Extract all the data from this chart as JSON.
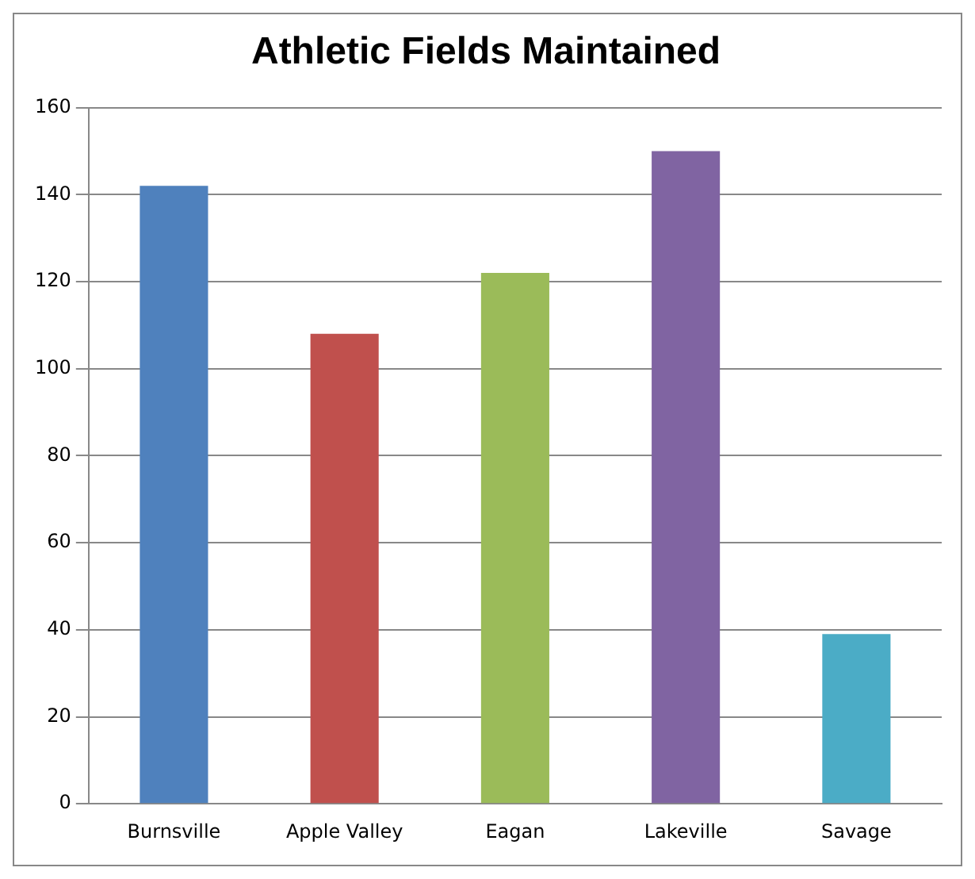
{
  "chart_data": {
    "type": "bar",
    "title": "Athletic Fields Maintained",
    "categories": [
      "Burnsville",
      "Apple Valley",
      "Eagan",
      "Lakeville",
      "Savage"
    ],
    "values": [
      142,
      108,
      122,
      150,
      39
    ],
    "colors": [
      "#4f81bd",
      "#c0504d",
      "#9bbb59",
      "#8064a2",
      "#4bacc6"
    ],
    "ylim": [
      0,
      160
    ],
    "yticks": [
      0,
      20,
      40,
      60,
      80,
      100,
      120,
      140,
      160
    ],
    "grid": "y",
    "legend": false
  }
}
